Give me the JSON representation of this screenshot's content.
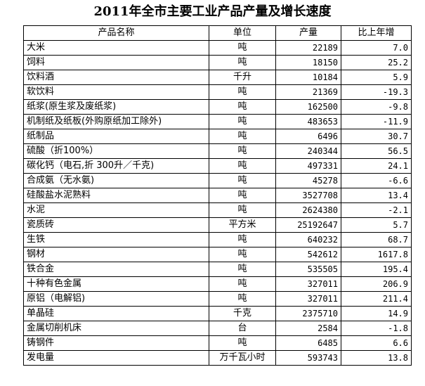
{
  "title": "2011年全市主要工业产品产量及增长速度",
  "table": {
    "headers": [
      "产品名称",
      "单位",
      "产量",
      "比上年增"
    ],
    "rows": [
      [
        "大米",
        "吨",
        "22189",
        "7.0"
      ],
      [
        "饲料",
        "吨",
        "18150",
        "25.2"
      ],
      [
        "饮料酒",
        "千升",
        "10184",
        "5.9"
      ],
      [
        "软饮料",
        "吨",
        "21369",
        "-19.3"
      ],
      [
        "纸浆(原生浆及废纸浆)",
        "吨",
        "162500",
        "-9.8"
      ],
      [
        "机制纸及纸板(外购原纸加工除外)",
        "吨",
        "483653",
        "-11.9"
      ],
      [
        "纸制品",
        "吨",
        "6496",
        "30.7"
      ],
      [
        "硫酸（折100%）",
        "吨",
        "240344",
        "56.5"
      ],
      [
        "碳化钙（电石,折 300升／千克)",
        "吨",
        "497331",
        "24.1"
      ],
      [
        "合成氨（无水氨)",
        "吨",
        "45278",
        "-6.6"
      ],
      [
        "硅酸盐水泥熟料",
        "吨",
        "3527708",
        "13.4"
      ],
      [
        "水泥",
        "吨",
        "2624380",
        "-2.1"
      ],
      [
        "瓷质砖",
        "平方米",
        "25192647",
        "5.7"
      ],
      [
        "生铁",
        "吨",
        "640232",
        "68.7"
      ],
      [
        "钢材",
        "吨",
        "542612",
        "1617.8"
      ],
      [
        "铁合金",
        "吨",
        "535505",
        "195.4"
      ],
      [
        "十种有色金属",
        "吨",
        "327011",
        "206.9"
      ],
      [
        "原铝（电解铝)",
        "吨",
        "327011",
        "211.4"
      ],
      [
        "单晶硅",
        "千克",
        "2375710",
        "14.9"
      ],
      [
        "金属切削机床",
        "台",
        "2584",
        "-1.8"
      ],
      [
        "铸钢件",
        "吨",
        "6485",
        "6.6"
      ],
      [
        "发电量",
        "万千瓦小时",
        "593743",
        "13.8"
      ]
    ]
  }
}
